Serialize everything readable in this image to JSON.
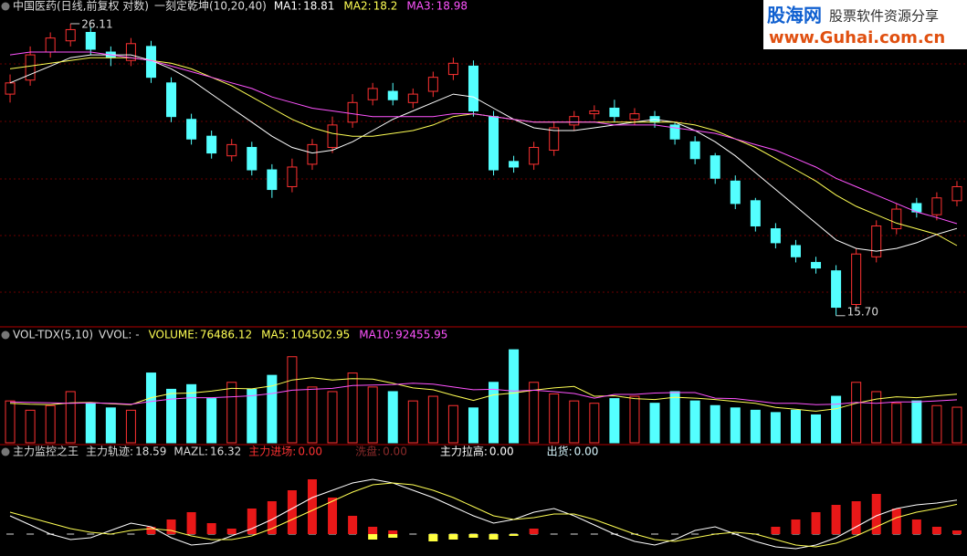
{
  "header": {
    "title": "中国医药(日线,前复权 对数)",
    "indicator": "一刻定乾坤(10,20,40)"
  },
  "watermark": {
    "brand": "股海网",
    "tagline": "股票软件资源分享",
    "url": "www.Guhai.com.cn"
  },
  "chart_data": [
    {
      "type": "candlestick",
      "ylim": [
        15.4,
        26.5
      ],
      "up_color": "#ff3232",
      "down_color": "#54ffff",
      "open": [
        23.6,
        24.1,
        25.1,
        25.5,
        25.8,
        25.1,
        24.8,
        25.3,
        24.0,
        22.7,
        22.1,
        21.4,
        21.7,
        20.9,
        20.3,
        21.1,
        21.7,
        22.6,
        23.4,
        23.7,
        23.3,
        23.7,
        24.3,
        24.6,
        22.8,
        21.2,
        21.1,
        21.6,
        22.5,
        22.9,
        23.1,
        22.7,
        22.8,
        22.5,
        21.9,
        21.4,
        20.5,
        19.8,
        18.8,
        18.2,
        17.6,
        17.3,
        16.1,
        17.8,
        18.8,
        19.7,
        19.3,
        19.8
      ],
      "high": [
        24.3,
        25.3,
        25.8,
        26.11,
        26.0,
        25.3,
        25.6,
        25.5,
        24.2,
        22.9,
        22.3,
        22.0,
        21.9,
        21.1,
        21.3,
        22.0,
        22.8,
        23.6,
        24.0,
        24.0,
        23.8,
        24.4,
        24.9,
        24.8,
        23.0,
        21.4,
        21.9,
        22.6,
        23.0,
        23.2,
        23.4,
        23.1,
        23.0,
        22.6,
        22.1,
        21.5,
        20.7,
        19.9,
        19.0,
        18.4,
        17.8,
        17.5,
        18.1,
        19.1,
        19.7,
        19.9,
        20.1,
        20.5
      ],
      "low": [
        23.3,
        23.9,
        24.9,
        25.3,
        25.0,
        24.6,
        24.6,
        24.0,
        22.6,
        21.8,
        21.3,
        21.2,
        20.7,
        19.9,
        20.1,
        20.9,
        21.5,
        22.4,
        23.2,
        23.2,
        23.1,
        23.5,
        24.1,
        22.8,
        20.7,
        20.8,
        20.9,
        21.4,
        22.3,
        22.7,
        22.6,
        22.5,
        22.4,
        21.8,
        21.1,
        20.4,
        19.5,
        18.7,
        18.1,
        17.6,
        17.2,
        15.7,
        16.0,
        17.6,
        18.6,
        19.2,
        19.1,
        19.6
      ],
      "close": [
        24.0,
        25.0,
        25.6,
        25.9,
        25.2,
        24.9,
        25.4,
        24.2,
        22.8,
        22.0,
        21.5,
        21.8,
        20.9,
        20.2,
        21.0,
        21.8,
        22.5,
        23.3,
        23.8,
        23.4,
        23.6,
        24.2,
        24.7,
        23.0,
        20.9,
        21.0,
        21.7,
        22.4,
        22.8,
        23.0,
        22.8,
        22.9,
        22.6,
        22.0,
        21.3,
        20.6,
        19.7,
        18.9,
        18.3,
        17.8,
        17.4,
        16.0,
        17.9,
        18.9,
        19.5,
        19.4,
        19.9,
        20.3
      ],
      "lines": [
        {
          "name": "MA1:",
          "color": "#ffffff",
          "values": [
            24.0,
            24.3,
            24.6,
            24.9,
            25.0,
            25.0,
            25.0,
            24.8,
            24.5,
            24.1,
            23.6,
            23.1,
            22.6,
            22.1,
            21.7,
            21.5,
            21.6,
            21.9,
            22.3,
            22.7,
            23.0,
            23.3,
            23.6,
            23.5,
            23.1,
            22.7,
            22.4,
            22.3,
            22.3,
            22.4,
            22.5,
            22.6,
            22.7,
            22.6,
            22.3,
            21.9,
            21.4,
            20.8,
            20.2,
            19.6,
            19.0,
            18.4,
            18.1,
            18.0,
            18.1,
            18.3,
            18.6,
            18.81
          ]
        },
        {
          "name": "MA2:",
          "color": "#ffff54",
          "values": [
            24.5,
            24.6,
            24.7,
            24.8,
            24.9,
            24.9,
            24.9,
            24.8,
            24.7,
            24.5,
            24.2,
            23.9,
            23.5,
            23.1,
            22.7,
            22.4,
            22.2,
            22.1,
            22.1,
            22.2,
            22.3,
            22.5,
            22.8,
            22.9,
            22.8,
            22.7,
            22.6,
            22.6,
            22.6,
            22.6,
            22.6,
            22.6,
            22.6,
            22.6,
            22.5,
            22.3,
            22.0,
            21.7,
            21.3,
            20.9,
            20.5,
            20.0,
            19.6,
            19.3,
            19.0,
            18.8,
            18.6,
            18.2
          ]
        },
        {
          "name": "MA3:",
          "color": "#ff54ff",
          "values": [
            25.0,
            25.1,
            25.1,
            25.1,
            25.1,
            25.0,
            24.9,
            24.8,
            24.6,
            24.4,
            24.2,
            24.0,
            23.8,
            23.5,
            23.3,
            23.1,
            23.0,
            22.9,
            22.8,
            22.8,
            22.8,
            22.8,
            22.9,
            22.9,
            22.8,
            22.7,
            22.6,
            22.6,
            22.6,
            22.6,
            22.5,
            22.5,
            22.5,
            22.4,
            22.3,
            22.2,
            22.0,
            21.8,
            21.6,
            21.3,
            21.0,
            20.6,
            20.3,
            20.0,
            19.7,
            19.4,
            19.2,
            18.98
          ]
        }
      ],
      "annotations": [
        {
          "value": 26.11
        },
        {
          "value": 15.7,
          "label": "15.70"
        }
      ]
    },
    {
      "type": "bar",
      "title": "VOL-TDX(5,10)",
      "subtitle": "VVOL: -",
      "name": "VOLUME:",
      "ylim": [
        0,
        210000
      ],
      "values": [
        90000,
        70000,
        80000,
        110000,
        85000,
        75000,
        70000,
        150000,
        115000,
        125000,
        95000,
        130000,
        115000,
        145000,
        185000,
        120000,
        110000,
        150000,
        120000,
        110000,
        90000,
        100000,
        80000,
        75000,
        130000,
        200000,
        130000,
        105000,
        90000,
        85000,
        95000,
        100000,
        85000,
        110000,
        90000,
        80000,
        75000,
        70000,
        65000,
        70000,
        60000,
        100000,
        130000,
        110000,
        85000,
        90000,
        80000,
        76486.12
      ],
      "lines": [
        {
          "name": "MA5:",
          "color": "#ffff54",
          "values": [
            85000,
            83000,
            82000,
            86000,
            87000,
            84000,
            82000,
            97000,
            106000,
            107000,
            111000,
            117000,
            116000,
            122000,
            135000,
            140000,
            135000,
            138000,
            137000,
            128000,
            118000,
            114000,
            102000,
            91000,
            103000,
            107000,
            113000,
            118000,
            121000,
            100000,
            101000,
            95000,
            93000,
            98000,
            96000,
            93000,
            89000,
            85000,
            76000,
            72000,
            68000,
            73000,
            85000,
            94000,
            99000,
            97000,
            101000,
            104502.95
          ]
        },
        {
          "name": "MA10:",
          "color": "#ff54ff",
          "values": [
            88000,
            87000,
            86000,
            85000,
            86000,
            85000,
            83000,
            89000,
            94000,
            97000,
            97000,
            99000,
            101000,
            106000,
            113000,
            115000,
            117000,
            123000,
            124000,
            125000,
            128000,
            126000,
            120000,
            114000,
            115000,
            111000,
            113000,
            110000,
            106000,
            96000,
            104000,
            104000,
            107000,
            108000,
            108000,
            96000,
            95000,
            90000,
            85000,
            85000,
            82000,
            83000,
            87000,
            85000,
            88000,
            88000,
            90000,
            92455.95
          ]
        }
      ]
    },
    {
      "type": "histogram",
      "title": "主力监控之王",
      "ylim": [
        -10,
        40
      ],
      "lines": [
        {
          "name": "主力轨迹:",
          "color": "#ffffff",
          "values": [
            10,
            5,
            0,
            -3,
            -2,
            2,
            6,
            4,
            -2,
            -6,
            -5,
            -1,
            3,
            8,
            14,
            20,
            24,
            28,
            30,
            28,
            24,
            20,
            15,
            10,
            6,
            8,
            12,
            14,
            10,
            5,
            0,
            -4,
            -6,
            -3,
            2,
            4,
            0,
            -4,
            -7,
            -8,
            -6,
            -2,
            4,
            10,
            14,
            16,
            17,
            18.59
          ]
        },
        {
          "name": "MAZL:",
          "color": "#ffff54",
          "values": [
            12,
            9,
            6,
            3,
            1,
            0,
            2,
            3,
            2,
            -1,
            -3,
            -3,
            -1,
            3,
            8,
            13,
            18,
            23,
            27,
            28,
            27,
            24,
            20,
            15,
            10,
            8,
            9,
            11,
            11,
            8,
            4,
            0,
            -3,
            -4,
            -2,
            0,
            1,
            0,
            -3,
            -6,
            -7,
            -5,
            -1,
            4,
            9,
            12,
            14,
            16.32
          ]
        }
      ],
      "bars": [
        {
          "color": "#e81818",
          "values": [
            0,
            0,
            0,
            0,
            0,
            0,
            0,
            4,
            8,
            12,
            6,
            3,
            14,
            18,
            24,
            30,
            20,
            10,
            4,
            2,
            0,
            0,
            0,
            0,
            0,
            0,
            3,
            0,
            0,
            0,
            0,
            0,
            0,
            0,
            0,
            0,
            0,
            0,
            4,
            8,
            12,
            16,
            18,
            22,
            14,
            8,
            4,
            2
          ]
        },
        {
          "color": "#ffff40",
          "values": [
            0,
            0,
            0,
            0,
            0,
            0,
            0,
            0,
            0,
            0,
            0,
            0,
            0,
            0,
            0,
            0,
            0,
            0,
            -3,
            -2,
            0,
            -4,
            -3,
            -2,
            -3,
            -1,
            0,
            0,
            0,
            0,
            0,
            0,
            0,
            0,
            0,
            0,
            0,
            0,
            0,
            0,
            0,
            0,
            0,
            0,
            0,
            0,
            0,
            0
          ]
        }
      ],
      "legend": [
        {
          "name": "主力进场:",
          "value": 0,
          "label": "0.00",
          "color": "#ff3232"
        },
        {
          "name": "洗盘:",
          "value": 0,
          "label": "0.00",
          "color": "#8b2a2a"
        },
        {
          "name": "主力拉高:",
          "value": 0,
          "label": "0.00",
          "color": "#ffffff"
        },
        {
          "name": "出货:",
          "value": 0,
          "label": "0.00",
          "color": "#d8f8ff"
        }
      ]
    }
  ]
}
